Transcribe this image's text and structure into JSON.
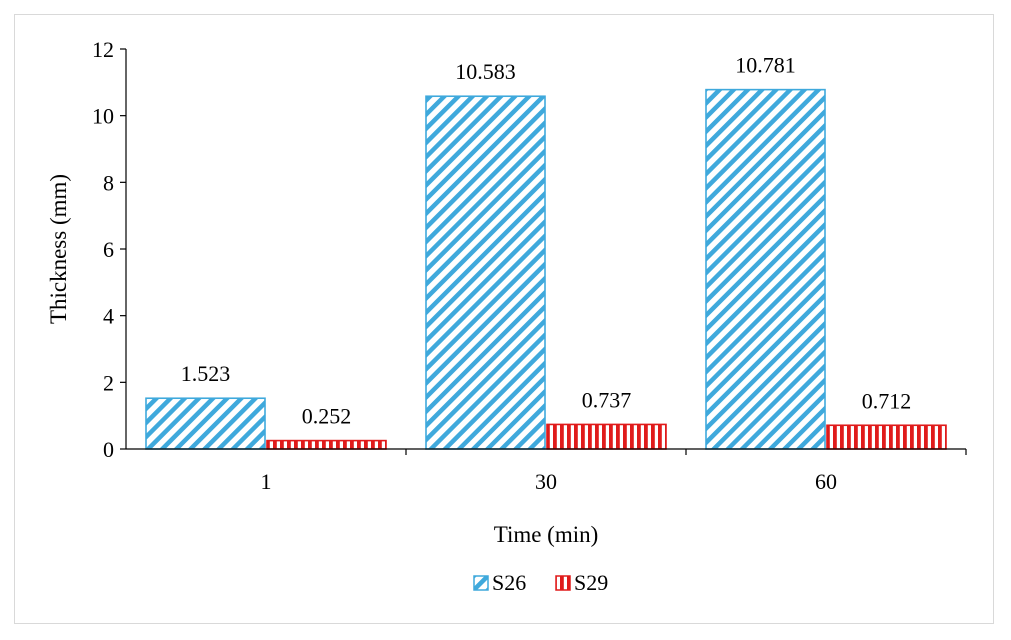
{
  "chart_data": {
    "type": "bar",
    "categories": [
      "1",
      "30",
      "60"
    ],
    "series": [
      {
        "name": "S26",
        "values": [
          1.523,
          10.583,
          10.781
        ],
        "labels": [
          "1.523",
          "10.583",
          "10.781"
        ],
        "color": "#3fa9dc",
        "pattern": "diagonal-stripes"
      },
      {
        "name": "S29",
        "values": [
          0.252,
          0.737,
          0.712
        ],
        "labels": [
          "0.252",
          "0.737",
          "0.712"
        ],
        "color": "#e01b1b",
        "pattern": "vertical-stripes"
      }
    ],
    "xlabel": "Time (min)",
    "ylabel": "Thickness (mm)",
    "ylim": [
      0,
      12
    ],
    "yticks": [
      "0",
      "2",
      "4",
      "6",
      "8",
      "10",
      "12"
    ],
    "grid": false,
    "legend_position": "bottom"
  }
}
